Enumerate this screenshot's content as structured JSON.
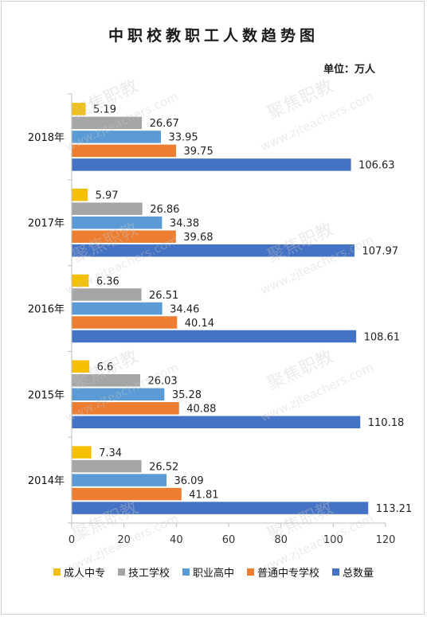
{
  "chart_data": {
    "type": "bar",
    "orientation": "horizontal",
    "title": "中职校教职工人数趋势图",
    "unit_label": "单位：万人",
    "categories": [
      "2018年",
      "2017年",
      "2016年",
      "2015年",
      "2014年"
    ],
    "series": [
      {
        "name": "成人中专",
        "color": "#f5c000",
        "values": [
          5.19,
          5.97,
          6.36,
          6.6,
          7.34
        ]
      },
      {
        "name": "技工学校",
        "color": "#a5a5a5",
        "values": [
          26.67,
          26.86,
          26.51,
          26.03,
          26.52
        ]
      },
      {
        "name": "职业高中",
        "color": "#5b9bd5",
        "values": [
          33.95,
          34.38,
          34.46,
          35.28,
          36.09
        ]
      },
      {
        "name": "普通中专学校",
        "color": "#ed7d31",
        "values": [
          39.75,
          39.68,
          40.14,
          40.88,
          41.81
        ]
      },
      {
        "name": "总数量",
        "color": "#4472c4",
        "values": [
          106.63,
          107.97,
          108.61,
          110.18,
          113.21
        ]
      }
    ],
    "data_labels": [
      [
        "5.19",
        "26.67",
        "33.95",
        "39.75",
        "106.63"
      ],
      [
        "5.97",
        "26.86",
        "34.38",
        "39.68",
        "107.97"
      ],
      [
        "6.36",
        "26.51",
        "34.46",
        "40.14",
        "108.61"
      ],
      [
        "6.6",
        "26.03",
        "35.28",
        "40.88",
        "110.18"
      ],
      [
        "7.34",
        "26.52",
        "36.09",
        "41.81",
        "113.21"
      ]
    ],
    "x_ticks": [
      "0",
      "20",
      "40",
      "60",
      "80",
      "100",
      "120"
    ],
    "xlim": [
      0,
      120
    ],
    "grid": false,
    "legend_position": "bottom"
  },
  "watermark": {
    "text": "聚焦职教",
    "url": "www.zjteachers.com"
  }
}
